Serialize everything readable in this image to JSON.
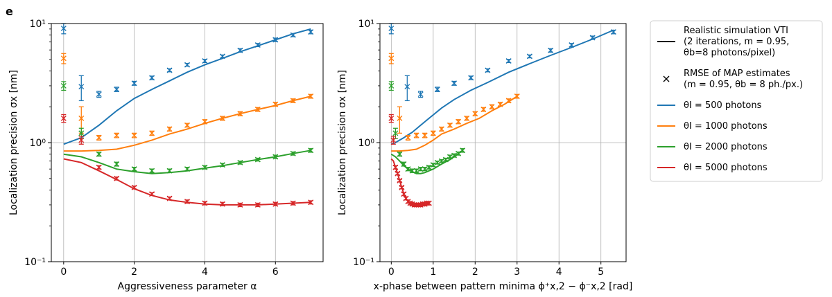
{
  "figure": {
    "panel_label": "e",
    "legend": {
      "entries": [
        {
          "key": "sim",
          "marker": "line",
          "color": "#000000",
          "lines": [
            "Realistic simulation VTI",
            "(2 iterations, m = 0.95,",
            "θb=8 photons/pixel)"
          ]
        },
        {
          "key": "rmse",
          "marker": "x",
          "color": "#000000",
          "lines": [
            "RMSE of MAP estimates",
            "(m = 0.95, θb = 8 ph./px.)"
          ]
        },
        {
          "key": "s500",
          "marker": "line",
          "color": "#1f77b4",
          "lines": [
            "θI = 500 photons"
          ]
        },
        {
          "key": "s1000",
          "marker": "line",
          "color": "#ff7f0e",
          "lines": [
            "θI = 1000 photons"
          ]
        },
        {
          "key": "s2000",
          "marker": "line",
          "color": "#2ca02c",
          "lines": [
            "θI = 2000 photons"
          ]
        },
        {
          "key": "s5000",
          "marker": "line",
          "color": "#d62728",
          "lines": [
            "θI = 5000 photons"
          ]
        }
      ]
    }
  },
  "chart_data": [
    {
      "type": "line",
      "xlabel": "Aggressiveness parameter α",
      "ylabel": "Localization precision σx [nm]",
      "y_scale": "log",
      "xlim": [
        -0.35,
        7.35
      ],
      "ylim": [
        0.1,
        10
      ],
      "xticks": [
        0,
        2,
        4,
        6
      ],
      "xtick_labels": [
        "0",
        "2",
        "4",
        "6"
      ],
      "yticks": [
        0.1,
        1,
        10
      ],
      "ytick_labels": [
        "10⁻¹",
        "10⁰",
        "10¹"
      ],
      "grid": true,
      "series": [
        {
          "name": "θI = 500 photons",
          "color": "#1f77b4",
          "line": {
            "x": [
              0,
              0.5,
              1,
              1.5,
              2,
              2.5,
              3,
              3.5,
              4,
              4.5,
              5,
              5.5,
              6,
              6.5,
              7
            ],
            "y": [
              0.97,
              1.1,
              1.4,
              1.85,
              2.35,
              2.8,
              3.3,
              3.9,
              4.5,
              5.1,
              5.8,
              6.5,
              7.3,
              8.2,
              9.0
            ]
          },
          "points": {
            "x": [
              0,
              0.5,
              1,
              1.5,
              2,
              2.5,
              3,
              3.5,
              4,
              4.5,
              5,
              5.5,
              6,
              6.5,
              7
            ],
            "y": [
              9.1,
              2.95,
              2.55,
              2.8,
              3.15,
              3.5,
              4.05,
              4.5,
              4.85,
              5.3,
              5.95,
              6.6,
              7.3,
              8.0,
              8.5
            ],
            "err": [
              0.9,
              0.7,
              0.15,
              0.12,
              0.12,
              0.12,
              0.12,
              0.12,
              0.15,
              0.15,
              0.2,
              0.2,
              0.25,
              0.25,
              0.3
            ]
          }
        },
        {
          "name": "θI = 1000 photons",
          "color": "#ff7f0e",
          "line": {
            "x": [
              0,
              0.5,
              1,
              1.5,
              2,
              2.5,
              3,
              3.5,
              4,
              4.5,
              5,
              5.5,
              6,
              6.5,
              7
            ],
            "y": [
              0.85,
              0.85,
              0.86,
              0.88,
              0.95,
              1.05,
              1.18,
              1.3,
              1.45,
              1.6,
              1.75,
              1.9,
              2.05,
              2.25,
              2.45
            ]
          },
          "points": {
            "x": [
              0,
              0.5,
              1,
              1.5,
              2,
              2.5,
              3,
              3.5,
              4,
              4.5,
              5,
              5.5,
              6,
              6.5,
              7
            ],
            "y": [
              5.1,
              1.6,
              1.1,
              1.15,
              1.15,
              1.2,
              1.3,
              1.4,
              1.5,
              1.6,
              1.75,
              1.9,
              2.1,
              2.25,
              2.45
            ],
            "err": [
              0.5,
              0.4,
              0.05,
              0.05,
              0.05,
              0.05,
              0.05,
              0.05,
              0.06,
              0.06,
              0.07,
              0.07,
              0.08,
              0.08,
              0.09
            ]
          }
        },
        {
          "name": "θI = 2000 photons",
          "color": "#2ca02c",
          "line": {
            "x": [
              0,
              0.5,
              1,
              1.5,
              2,
              2.5,
              3,
              3.5,
              4,
              4.5,
              5,
              5.5,
              6,
              6.5,
              7
            ],
            "y": [
              0.8,
              0.76,
              0.68,
              0.6,
              0.57,
              0.55,
              0.56,
              0.58,
              0.61,
              0.64,
              0.68,
              0.72,
              0.76,
              0.81,
              0.86
            ]
          },
          "points": {
            "x": [
              0,
              0.5,
              1,
              1.5,
              2,
              2.5,
              3,
              3.5,
              4,
              4.5,
              5,
              5.5,
              6,
              6.5,
              7
            ],
            "y": [
              3.0,
              1.2,
              0.8,
              0.66,
              0.6,
              0.58,
              0.58,
              0.6,
              0.62,
              0.65,
              0.68,
              0.72,
              0.76,
              0.81,
              0.86
            ],
            "err": [
              0.25,
              0.12,
              0.03,
              0.025,
              0.02,
              0.02,
              0.02,
              0.02,
              0.02,
              0.02,
              0.02,
              0.02,
              0.025,
              0.025,
              0.03
            ]
          }
        },
        {
          "name": "θI = 5000 photons",
          "color": "#d62728",
          "line": {
            "x": [
              0,
              0.5,
              1,
              1.5,
              2,
              2.5,
              3,
              3.5,
              4,
              4.5,
              5,
              5.5,
              6,
              6.5,
              7
            ],
            "y": [
              0.73,
              0.68,
              0.58,
              0.49,
              0.41,
              0.36,
              0.33,
              0.315,
              0.305,
              0.3,
              0.3,
              0.3,
              0.305,
              0.31,
              0.315
            ]
          },
          "points": {
            "x": [
              0,
              0.5,
              1,
              1.5,
              2,
              2.5,
              3,
              3.5,
              4,
              4.5,
              5,
              5.5,
              6,
              6.5,
              7
            ],
            "y": [
              1.6,
              1.05,
              0.62,
              0.5,
              0.42,
              0.37,
              0.34,
              0.32,
              0.31,
              0.305,
              0.3,
              0.3,
              0.305,
              0.31,
              0.315
            ],
            "err": [
              0.12,
              0.08,
              0.02,
              0.015,
              0.012,
              0.01,
              0.01,
              0.01,
              0.01,
              0.01,
              0.01,
              0.01,
              0.01,
              0.01,
              0.01
            ]
          }
        }
      ]
    },
    {
      "type": "line",
      "xlabel": "x-phase between pattern minima ϕ⁺x,2 − ϕ⁻x,2 [rad]",
      "ylabel": "Localization precision σx [nm]",
      "y_scale": "log",
      "xlim": [
        -0.27,
        5.6
      ],
      "ylim": [
        0.1,
        10
      ],
      "xticks": [
        0,
        1,
        2,
        3,
        4,
        5
      ],
      "xtick_labels": [
        "0",
        "1",
        "2",
        "3",
        "4",
        "5"
      ],
      "yticks": [
        0.1,
        1,
        10
      ],
      "ytick_labels": [
        "10⁻¹",
        "10⁰",
        "10¹"
      ],
      "grid": true,
      "series": [
        {
          "name": "θI = 500 photons",
          "color": "#1f77b4",
          "line": {
            "x": [
              0,
              0.1,
              0.2,
              0.3,
              0.4,
              0.5,
              0.7,
              0.9,
              1.2,
              1.5,
              1.9,
              2.3,
              2.8,
              3.3,
              3.8,
              4.3,
              4.8,
              5.3
            ],
            "y": [
              0.97,
              1.0,
              1.05,
              1.1,
              1.16,
              1.22,
              1.4,
              1.6,
              1.95,
              2.3,
              2.75,
              3.2,
              3.9,
              4.6,
              5.4,
              6.3,
              7.4,
              8.8
            ]
          },
          "points": {
            "x": [
              0,
              0.38,
              0.7,
              1.1,
              1.5,
              1.9,
              2.3,
              2.8,
              3.3,
              3.8,
              4.3,
              4.8,
              5.3
            ],
            "y": [
              9.1,
              2.95,
              2.55,
              2.8,
              3.15,
              3.5,
              4.05,
              4.85,
              5.3,
              5.95,
              6.6,
              7.6,
              8.5
            ],
            "err": [
              0.9,
              0.7,
              0.15,
              0.12,
              0.12,
              0.12,
              0.12,
              0.15,
              0.15,
              0.2,
              0.2,
              0.25,
              0.3
            ]
          }
        },
        {
          "name": "θI = 1000 photons",
          "color": "#ff7f0e",
          "line": {
            "x": [
              0,
              0.2,
              0.4,
              0.6,
              0.8,
              1.0,
              1.2,
              1.5,
              1.8,
              2.1,
              2.4,
              2.7,
              3.0
            ],
            "y": [
              0.85,
              0.85,
              0.86,
              0.88,
              0.95,
              1.05,
              1.18,
              1.3,
              1.45,
              1.6,
              1.85,
              2.1,
              2.45
            ]
          },
          "points": {
            "x": [
              0,
              0.2,
              0.4,
              0.6,
              0.8,
              1.0,
              1.2,
              1.4,
              1.6,
              1.8,
              2.0,
              2.2,
              2.4,
              2.6,
              2.8,
              3.0
            ],
            "y": [
              5.1,
              1.6,
              1.1,
              1.15,
              1.15,
              1.2,
              1.3,
              1.4,
              1.5,
              1.6,
              1.75,
              1.9,
              2.0,
              2.1,
              2.25,
              2.45
            ],
            "err": [
              0.5,
              0.4,
              0.05,
              0.05,
              0.05,
              0.05,
              0.05,
              0.05,
              0.06,
              0.06,
              0.07,
              0.07,
              0.08,
              0.08,
              0.08,
              0.09
            ]
          }
        },
        {
          "name": "θI = 2000 photons",
          "color": "#2ca02c",
          "line": {
            "x": [
              0,
              0.1,
              0.2,
              0.3,
              0.4,
              0.5,
              0.6,
              0.7,
              0.8,
              0.9,
              1.0,
              1.1,
              1.2,
              1.3,
              1.4,
              1.5,
              1.6,
              1.7
            ],
            "y": [
              0.8,
              0.76,
              0.7,
              0.64,
              0.6,
              0.57,
              0.55,
              0.55,
              0.56,
              0.58,
              0.6,
              0.63,
              0.66,
              0.69,
              0.72,
              0.76,
              0.81,
              0.86
            ]
          },
          "points": {
            "x": [
              0,
              0.1,
              0.2,
              0.3,
              0.4,
              0.5,
              0.6,
              0.7,
              0.8,
              0.9,
              1.0,
              1.1,
              1.2,
              1.3,
              1.4,
              1.5,
              1.6,
              1.7
            ],
            "y": [
              3.0,
              1.2,
              0.8,
              0.66,
              0.6,
              0.58,
              0.58,
              0.6,
              0.6,
              0.62,
              0.65,
              0.68,
              0.7,
              0.72,
              0.76,
              0.78,
              0.81,
              0.86
            ],
            "err": [
              0.25,
              0.12,
              0.03,
              0.025,
              0.02,
              0.02,
              0.02,
              0.02,
              0.02,
              0.02,
              0.02,
              0.02,
              0.02,
              0.02,
              0.025,
              0.025,
              0.025,
              0.03
            ]
          }
        },
        {
          "name": "θI = 5000 photons",
          "color": "#d62728",
          "line": {
            "x": [
              0,
              0.05,
              0.1,
              0.15,
              0.2,
              0.25,
              0.3,
              0.35,
              0.4,
              0.45,
              0.5,
              0.6,
              0.7,
              0.8,
              0.9
            ],
            "y": [
              0.73,
              0.7,
              0.62,
              0.55,
              0.48,
              0.42,
              0.37,
              0.34,
              0.32,
              0.31,
              0.305,
              0.3,
              0.3,
              0.305,
              0.31
            ]
          },
          "points": {
            "x": [
              0,
              0.05,
              0.1,
              0.15,
              0.2,
              0.25,
              0.3,
              0.35,
              0.4,
              0.45,
              0.5,
              0.55,
              0.6,
              0.65,
              0.7,
              0.75,
              0.8,
              0.85,
              0.9
            ],
            "y": [
              1.6,
              1.05,
              0.62,
              0.55,
              0.48,
              0.42,
              0.37,
              0.34,
              0.32,
              0.31,
              0.305,
              0.3,
              0.3,
              0.3,
              0.3,
              0.305,
              0.305,
              0.31,
              0.31
            ],
            "err": [
              0.12,
              0.08,
              0.02,
              0.015,
              0.012,
              0.01,
              0.01,
              0.01,
              0.01,
              0.01,
              0.01,
              0.01,
              0.01,
              0.01,
              0.01,
              0.01,
              0.01,
              0.01,
              0.01
            ]
          }
        }
      ]
    }
  ]
}
